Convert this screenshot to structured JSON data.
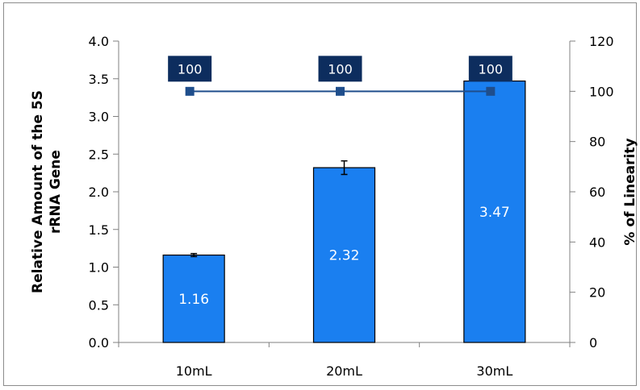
{
  "chart_data": {
    "type": "bar",
    "categories": [
      "10mL",
      "20mL",
      "30mL"
    ],
    "series": [
      {
        "type": "bar",
        "axis": "left",
        "values": [
          1.16,
          2.32,
          3.47
        ],
        "error": [
          0.02,
          0.09,
          0.0
        ],
        "data_labels": [
          "1.16",
          "2.32",
          "3.47"
        ],
        "color": "#1a7ff0"
      },
      {
        "type": "line",
        "axis": "right",
        "values": [
          100,
          100,
          100
        ],
        "data_labels": [
          "100",
          "100",
          "100"
        ],
        "color": "#1f4e8c"
      }
    ],
    "ylabel": "Relative Amount of the 5S rRNA Gene",
    "ylabel_lines": [
      "Relative Amount of the 5S",
      "rRNA Gene"
    ],
    "y2label": "% of Linearity",
    "ylim": [
      0,
      4.0
    ],
    "y2lim": [
      0,
      120
    ],
    "yticks": [
      0.0,
      0.5,
      1.0,
      1.5,
      2.0,
      2.5,
      3.0,
      3.5,
      4.0
    ],
    "yticklabels": [
      "0.0",
      "0.5",
      "1.0",
      "1.5",
      "2.0",
      "2.5",
      "3.0",
      "3.5",
      "4.0"
    ],
    "y2ticks": [
      0,
      20,
      40,
      60,
      80,
      100,
      120
    ],
    "y2ticklabels": [
      "0",
      "20",
      "40",
      "60",
      "80",
      "100",
      "120"
    ],
    "grid": false,
    "legend": "none",
    "label_box_color": "#0d2d5e"
  }
}
